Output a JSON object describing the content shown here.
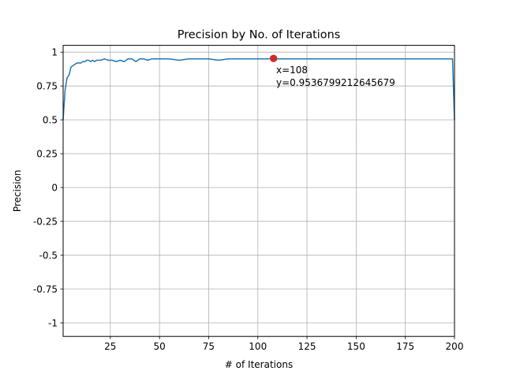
{
  "chart_data": {
    "type": "line",
    "title": "Precision by No. of Iterations",
    "xlabel": "# of Iterations",
    "ylabel": "Precision",
    "xlim": [
      1,
      200
    ],
    "ylim": [
      -1.1,
      1.05
    ],
    "grid": true,
    "legend": "none",
    "line_color": "#1f77b4",
    "marker_color": "#d62728",
    "xticks": [
      25,
      50,
      75,
      100,
      125,
      150,
      175,
      200
    ],
    "xtick_labels": [
      "25",
      "50",
      "75",
      "100",
      "125",
      "150",
      "175",
      "200"
    ],
    "yticks": [
      1,
      0.75,
      0.5,
      0.25,
      0,
      -0.25,
      -0.5,
      -0.75,
      -1
    ],
    "ytick_labels": [
      "1",
      "0.75",
      "0.5",
      "0.25",
      "0",
      "-0.25",
      "-0.5",
      "-0.75",
      "-1"
    ],
    "series": [
      {
        "x": [
          1,
          2,
          3,
          4,
          5,
          6,
          7,
          8,
          9,
          10,
          11,
          12,
          13,
          14,
          15,
          16,
          17,
          18,
          19,
          20,
          22,
          24,
          26,
          28,
          30,
          32,
          34,
          36,
          38,
          40,
          42,
          44,
          46,
          48,
          50,
          55,
          60,
          65,
          70,
          75,
          80,
          85,
          90,
          95,
          100,
          105,
          108,
          110,
          115,
          120,
          125,
          130,
          135,
          140,
          145,
          150,
          160,
          170,
          180,
          190,
          199,
          200
        ],
        "values": [
          0.5,
          0.72,
          0.81,
          0.83,
          0.89,
          0.9,
          0.91,
          0.92,
          0.92,
          0.92,
          0.93,
          0.93,
          0.94,
          0.94,
          0.93,
          0.94,
          0.93,
          0.94,
          0.94,
          0.94,
          0.95,
          0.94,
          0.94,
          0.93,
          0.94,
          0.93,
          0.95,
          0.95,
          0.93,
          0.95,
          0.95,
          0.94,
          0.95,
          0.95,
          0.95,
          0.95,
          0.94,
          0.95,
          0.95,
          0.95,
          0.94,
          0.95,
          0.95,
          0.95,
          0.95,
          0.95,
          0.954,
          0.95,
          0.95,
          0.95,
          0.95,
          0.95,
          0.95,
          0.95,
          0.95,
          0.95,
          0.95,
          0.95,
          0.95,
          0.95,
          0.95,
          0.5
        ]
      }
    ],
    "highlight": {
      "x": 108,
      "y": 0.9536799212645679,
      "label_x": "x=108",
      "label_y": "y=0.9536799212645679"
    }
  }
}
